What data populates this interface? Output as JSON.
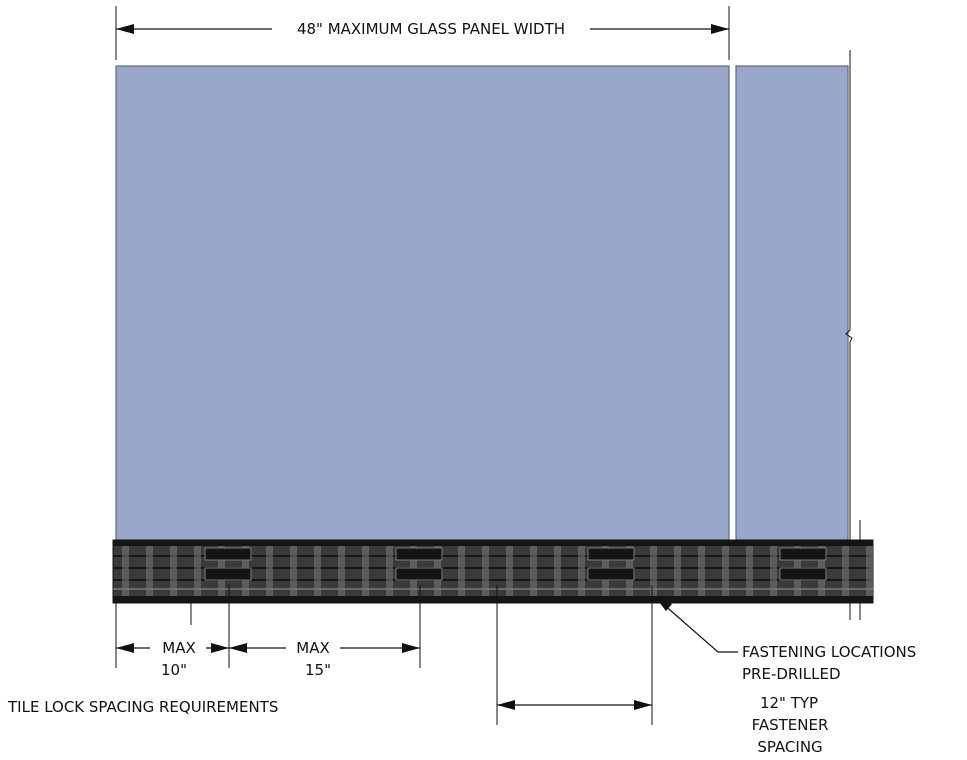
{
  "colors": {
    "glass": "#99a7cb",
    "glass_edge": "#5f6780",
    "rail": "#3a3a3a",
    "rail_dark": "#151515",
    "rail_light": "#7a7a7a",
    "line": "#111111"
  },
  "labels": {
    "panel_width": "48\" MAXIMUM GLASS PANEL WIDTH",
    "max1_top": "MAX",
    "max1_bottom": "10\"",
    "max2_top": "MAX",
    "max2_bottom": "15\"",
    "tile_lock": "TILE LOCK SPACING REQUIREMENTS",
    "fastening_line1": "FASTENING LOCATIONS",
    "fastening_line2": "PRE-DRILLED",
    "typ_line1": "12\" TYP",
    "typ_line2": "FASTENER",
    "typ_line3": "SPACING"
  }
}
